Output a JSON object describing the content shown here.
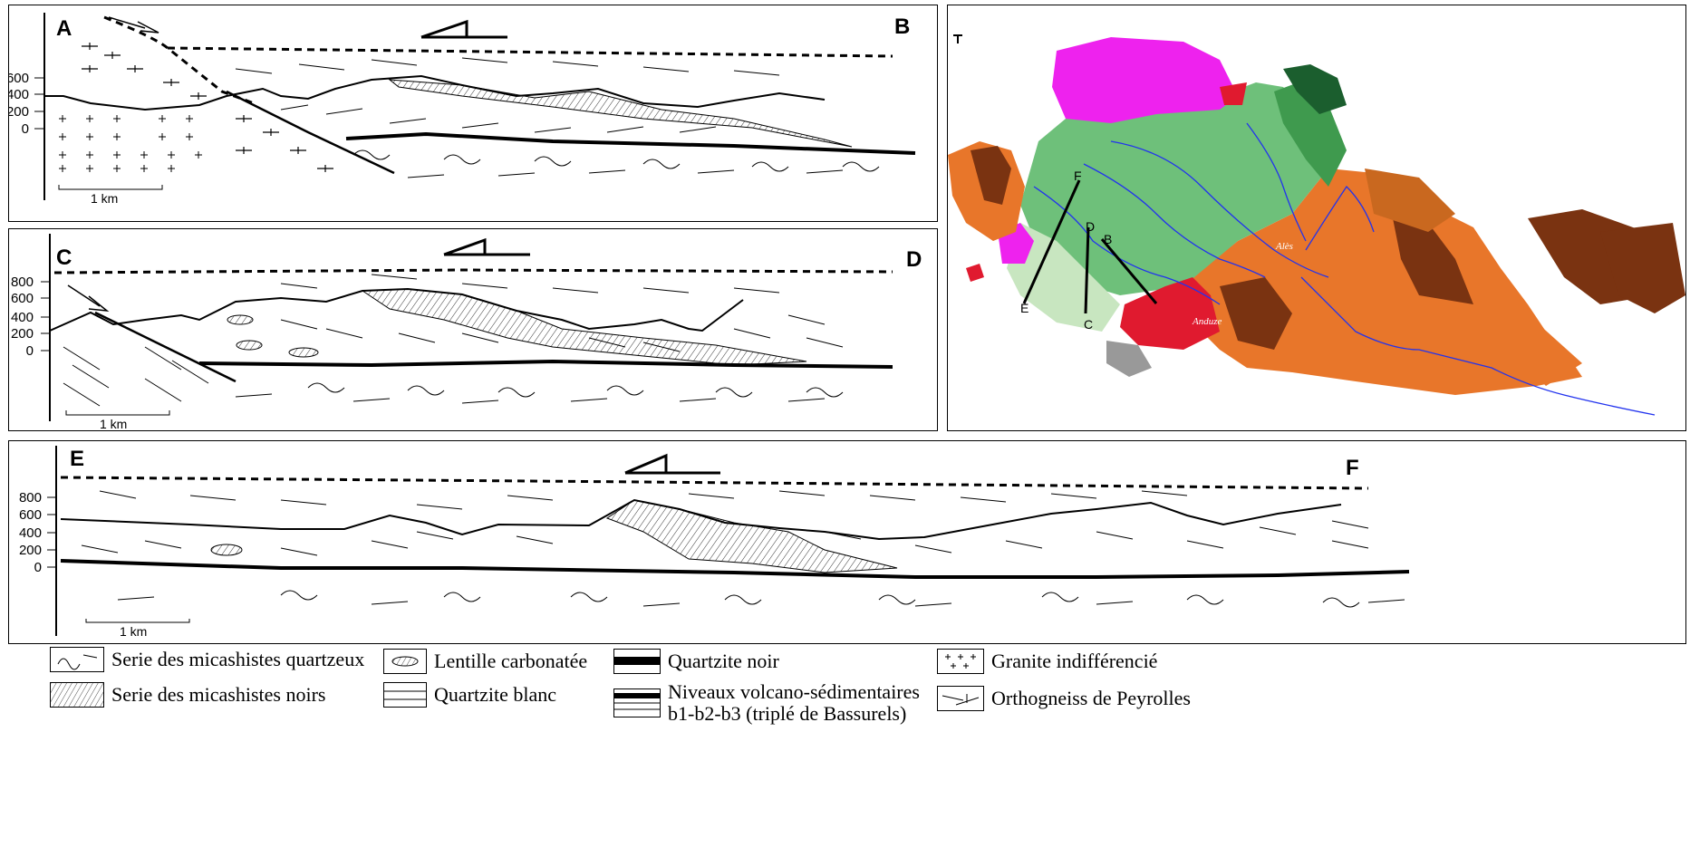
{
  "sections": {
    "ab": {
      "start": "A",
      "end": "B",
      "ticks": [
        "600",
        "400",
        "200",
        "0"
      ],
      "scale": "1 km"
    },
    "cd": {
      "start": "C",
      "end": "D",
      "ticks": [
        "800",
        "600",
        "400",
        "200",
        "0"
      ],
      "scale": "1 km"
    },
    "ef": {
      "start": "E",
      "end": "F",
      "ticks": [
        "800",
        "600",
        "400",
        "200",
        "0"
      ],
      "scale": "1 km"
    }
  },
  "map": {
    "profile_labels": {
      "e": "E",
      "f": "F",
      "d": "D",
      "b": "B",
      "c": "C"
    },
    "cities": {
      "ales": "Alès",
      "anduze": "Anduze"
    },
    "colors": {
      "magenta": "#ee22ee",
      "green": "#6ec07a",
      "dark_green": "#1b5e2e",
      "red": "#e01a2f",
      "orange": "#e8762a",
      "brown": "#7a3311",
      "river": "#2233ee",
      "light_green": "#c8e6c0"
    }
  },
  "legend": {
    "micaschistes_quartzeux": "Serie des micashistes quartzeux",
    "micaschistes_noirs": "Serie des micashistes noirs",
    "lentille": "Lentille carbonatée",
    "quartzite_blanc": "Quartzite blanc",
    "quartzite_noir": "Quartzite noir",
    "volcano_line1": "Niveaux volcano-sédimentaires",
    "volcano_line2": "b1-b2-b3 (triplé de Bassurels)",
    "granite": "Granite indifférencié",
    "orthogneiss": "Orthogneiss de Peyrolles"
  }
}
